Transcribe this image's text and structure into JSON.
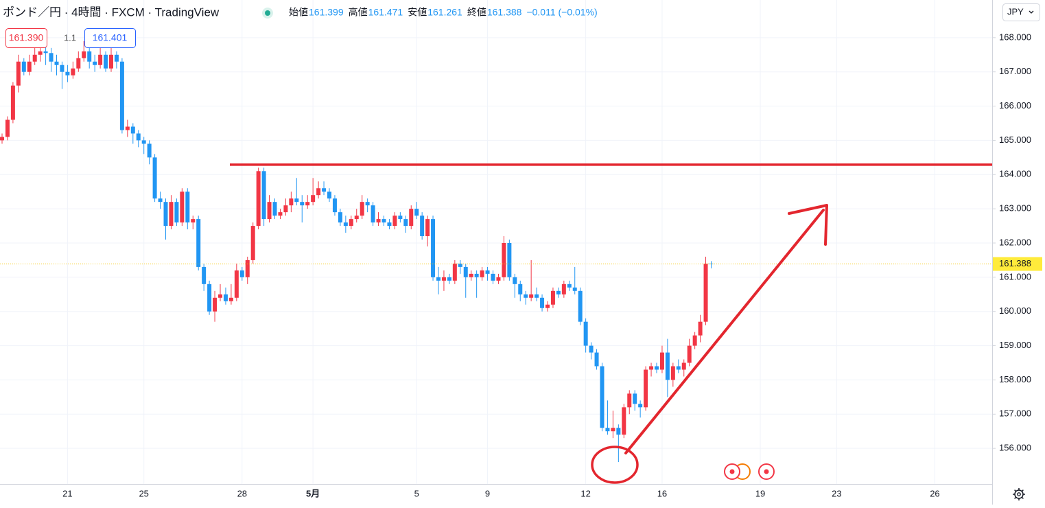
{
  "chart_data": {
    "type": "candlestick",
    "title": "ポンド／円 · 4時間 · FXCM · TradingView",
    "legend": {
      "labels": [
        "始値",
        "高値",
        "安値",
        "終値"
      ],
      "change": "−0.011 (−0.01%)"
    },
    "bid": "161.390",
    "spread": "1.1",
    "ask": "161.401",
    "currency": "JPY",
    "up_color": "#f23645",
    "down_color": "#2196f3",
    "ylim": [
      154.96,
      169.1
    ],
    "yticks": [
      {
        "value": 156,
        "label": "156.000"
      },
      {
        "value": 157,
        "label": "157.000"
      },
      {
        "value": 158,
        "label": "158.000"
      },
      {
        "value": 159,
        "label": "159.000"
      },
      {
        "value": 160,
        "label": "160.000"
      },
      {
        "value": 161,
        "label": "161.000"
      },
      {
        "value": 162,
        "label": "162.000"
      },
      {
        "value": 163,
        "label": "163.000"
      },
      {
        "value": 164,
        "label": "164.000"
      },
      {
        "value": 165,
        "label": "165.000"
      },
      {
        "value": 166,
        "label": "166.000"
      },
      {
        "value": 167,
        "label": "167.000"
      },
      {
        "value": 168,
        "label": "168.000"
      }
    ],
    "xticks": [
      {
        "value": 12,
        "label": "21"
      },
      {
        "value": 26,
        "label": "25"
      },
      {
        "value": 44,
        "label": "28"
      },
      {
        "value": 57,
        "label": "5月"
      },
      {
        "value": 76,
        "label": "5"
      },
      {
        "value": 89,
        "label": "9"
      },
      {
        "value": 107,
        "label": "12"
      },
      {
        "value": 121,
        "label": "16"
      },
      {
        "value": 139,
        "label": "19"
      },
      {
        "value": 153,
        "label": "23"
      },
      {
        "value": 171,
        "label": "26"
      }
    ],
    "hline": 164.29,
    "grid": true,
    "candles": [
      [
        165.0,
        165.2,
        164.9,
        165.1
      ],
      [
        165.1,
        165.7,
        165.0,
        165.6
      ],
      [
        165.6,
        166.7,
        165.5,
        166.6
      ],
      [
        166.6,
        167.5,
        166.4,
        167.3
      ],
      [
        167.3,
        167.4,
        166.9,
        167.0
      ],
      [
        167.0,
        167.5,
        166.9,
        167.3
      ],
      [
        167.3,
        167.7,
        167.2,
        167.5
      ],
      [
        167.5,
        167.9,
        167.3,
        167.6
      ],
      [
        167.6,
        167.8,
        167.2,
        167.55
      ],
      [
        167.55,
        167.7,
        167.0,
        167.3
      ],
      [
        167.3,
        167.5,
        166.9,
        167.2
      ],
      [
        167.2,
        167.3,
        166.5,
        167.0
      ],
      [
        167.0,
        167.2,
        166.7,
        166.9
      ],
      [
        166.9,
        167.3,
        166.8,
        167.1
      ],
      [
        167.1,
        167.6,
        167.0,
        167.4
      ],
      [
        167.4,
        167.9,
        167.3,
        167.6
      ],
      [
        167.6,
        167.7,
        167.1,
        167.3
      ],
      [
        167.3,
        167.5,
        167.0,
        167.2
      ],
      [
        167.2,
        167.8,
        167.1,
        167.5
      ],
      [
        167.5,
        167.6,
        167.0,
        167.1
      ],
      [
        167.1,
        167.7,
        167.0,
        167.5
      ],
      [
        167.5,
        167.6,
        167.1,
        167.3
      ],
      [
        167.3,
        167.4,
        165.2,
        165.3
      ],
      [
        165.3,
        165.6,
        165.1,
        165.4
      ],
      [
        165.4,
        165.5,
        164.9,
        165.2
      ],
      [
        165.2,
        165.3,
        164.8,
        165.0
      ],
      [
        165.0,
        165.1,
        164.6,
        164.9
      ],
      [
        164.9,
        165.0,
        164.3,
        164.5
      ],
      [
        164.5,
        164.6,
        163.2,
        163.3
      ],
      [
        163.3,
        163.5,
        163.0,
        163.2
      ],
      [
        163.2,
        163.3,
        162.1,
        162.5
      ],
      [
        162.5,
        163.4,
        162.4,
        163.2
      ],
      [
        163.2,
        163.3,
        162.5,
        162.6
      ],
      [
        162.6,
        163.6,
        162.5,
        163.5
      ],
      [
        163.5,
        163.6,
        162.4,
        162.6
      ],
      [
        162.6,
        162.8,
        162.4,
        162.7
      ],
      [
        162.7,
        162.8,
        161.2,
        161.3
      ],
      [
        161.3,
        161.4,
        160.6,
        160.8
      ],
      [
        160.8,
        160.9,
        159.9,
        160.0
      ],
      [
        160.0,
        160.6,
        159.7,
        160.4
      ],
      [
        160.4,
        160.8,
        160.3,
        160.5
      ],
      [
        160.5,
        160.7,
        160.2,
        160.3
      ],
      [
        160.3,
        160.8,
        160.2,
        160.4
      ],
      [
        160.4,
        161.4,
        160.3,
        161.2
      ],
      [
        161.2,
        161.3,
        160.9,
        161.0
      ],
      [
        161.0,
        161.6,
        160.8,
        161.5
      ],
      [
        161.5,
        162.6,
        161.4,
        162.5
      ],
      [
        162.5,
        164.2,
        162.4,
        164.1
      ],
      [
        164.1,
        164.2,
        162.5,
        162.7
      ],
      [
        162.7,
        163.4,
        162.6,
        163.2
      ],
      [
        163.2,
        163.3,
        162.7,
        162.8
      ],
      [
        162.8,
        163.0,
        162.7,
        162.9
      ],
      [
        162.9,
        163.3,
        162.8,
        163.1
      ],
      [
        163.1,
        163.5,
        162.9,
        163.3
      ],
      [
        163.3,
        163.9,
        163.1,
        163.2
      ],
      [
        163.2,
        163.4,
        162.6,
        163.1
      ],
      [
        163.1,
        163.4,
        163.0,
        163.2
      ],
      [
        163.2,
        163.9,
        163.1,
        163.4
      ],
      [
        163.4,
        163.8,
        163.3,
        163.6
      ],
      [
        163.6,
        163.8,
        163.4,
        163.5
      ],
      [
        163.5,
        163.6,
        163.2,
        163.3
      ],
      [
        163.3,
        163.4,
        162.8,
        162.9
      ],
      [
        162.9,
        163.0,
        162.5,
        162.6
      ],
      [
        162.6,
        162.8,
        162.3,
        162.5
      ],
      [
        162.5,
        162.8,
        162.4,
        162.7
      ],
      [
        162.7,
        163.0,
        162.6,
        162.8
      ],
      [
        162.8,
        163.4,
        162.7,
        163.2
      ],
      [
        163.2,
        163.3,
        162.9,
        163.1
      ],
      [
        163.1,
        163.2,
        162.5,
        162.6
      ],
      [
        162.6,
        162.9,
        162.5,
        162.7
      ],
      [
        162.7,
        162.8,
        162.5,
        162.6
      ],
      [
        162.6,
        162.7,
        162.4,
        162.5
      ],
      [
        162.5,
        162.9,
        162.4,
        162.8
      ],
      [
        162.8,
        162.9,
        162.6,
        162.7
      ],
      [
        162.7,
        162.8,
        162.3,
        162.5
      ],
      [
        162.5,
        163.1,
        162.4,
        163.0
      ],
      [
        163.0,
        163.2,
        162.7,
        162.8
      ],
      [
        162.8,
        162.9,
        162.1,
        162.2
      ],
      [
        162.2,
        162.8,
        161.9,
        162.7
      ],
      [
        162.7,
        162.8,
        160.9,
        161.0
      ],
      [
        161.0,
        161.3,
        160.5,
        160.9
      ],
      [
        160.9,
        161.2,
        160.6,
        161.0
      ],
      [
        161.0,
        161.1,
        160.8,
        160.9
      ],
      [
        160.9,
        161.5,
        160.8,
        161.4
      ],
      [
        161.4,
        161.5,
        161.1,
        161.3
      ],
      [
        161.3,
        161.4,
        160.4,
        161.0
      ],
      [
        161.0,
        161.2,
        160.9,
        161.1
      ],
      [
        161.1,
        161.2,
        160.4,
        161.0
      ],
      [
        161.0,
        161.3,
        160.9,
        161.2
      ],
      [
        161.2,
        161.3,
        160.9,
        161.1
      ],
      [
        161.1,
        161.2,
        160.8,
        160.9
      ],
      [
        160.9,
        161.1,
        160.8,
        161.0
      ],
      [
        161.0,
        162.2,
        160.9,
        162.0
      ],
      [
        162.0,
        162.1,
        160.9,
        161.0
      ],
      [
        161.0,
        161.1,
        160.4,
        160.8
      ],
      [
        160.8,
        160.9,
        160.3,
        160.5
      ],
      [
        160.5,
        160.6,
        160.2,
        160.4
      ],
      [
        160.4,
        161.5,
        160.3,
        160.5
      ],
      [
        160.5,
        160.7,
        160.3,
        160.4
      ],
      [
        160.4,
        160.5,
        160.0,
        160.1
      ],
      [
        160.1,
        160.3,
        160.0,
        160.2
      ],
      [
        160.2,
        160.7,
        160.1,
        160.6
      ],
      [
        160.6,
        160.7,
        160.4,
        160.5
      ],
      [
        160.5,
        160.9,
        160.4,
        160.8
      ],
      [
        160.8,
        160.9,
        160.6,
        160.7
      ],
      [
        160.7,
        161.3,
        160.5,
        160.6
      ],
      [
        160.6,
        160.7,
        159.6,
        159.7
      ],
      [
        159.7,
        159.8,
        158.8,
        159.0
      ],
      [
        159.0,
        159.1,
        158.6,
        158.8
      ],
      [
        158.8,
        158.9,
        158.3,
        158.4
      ],
      [
        158.4,
        158.5,
        156.5,
        156.6
      ],
      [
        156.6,
        157.4,
        156.4,
        156.5
      ],
      [
        156.5,
        157.1,
        156.3,
        156.6
      ],
      [
        156.6,
        156.7,
        155.6,
        156.4
      ],
      [
        156.4,
        157.3,
        156.3,
        157.2
      ],
      [
        157.2,
        157.7,
        157.0,
        157.6
      ],
      [
        157.6,
        157.7,
        157.1,
        157.3
      ],
      [
        157.3,
        157.4,
        156.9,
        157.2
      ],
      [
        157.2,
        158.4,
        157.1,
        158.3
      ],
      [
        158.3,
        158.5,
        158.1,
        158.4
      ],
      [
        158.4,
        158.5,
        158.2,
        158.3
      ],
      [
        158.3,
        159.0,
        158.2,
        158.8
      ],
      [
        158.8,
        159.2,
        157.5,
        158.0
      ],
      [
        158.0,
        158.5,
        157.8,
        158.4
      ],
      [
        158.4,
        158.6,
        158.2,
        158.3
      ],
      [
        158.3,
        158.6,
        158.1,
        158.5
      ],
      [
        158.5,
        159.2,
        158.4,
        159.0
      ],
      [
        159.0,
        159.4,
        158.9,
        159.3
      ],
      [
        159.3,
        159.9,
        159.1,
        159.7
      ],
      [
        159.7,
        161.6,
        159.6,
        161.399
      ],
      [
        161.399,
        161.471,
        161.261,
        161.388
      ]
    ]
  }
}
